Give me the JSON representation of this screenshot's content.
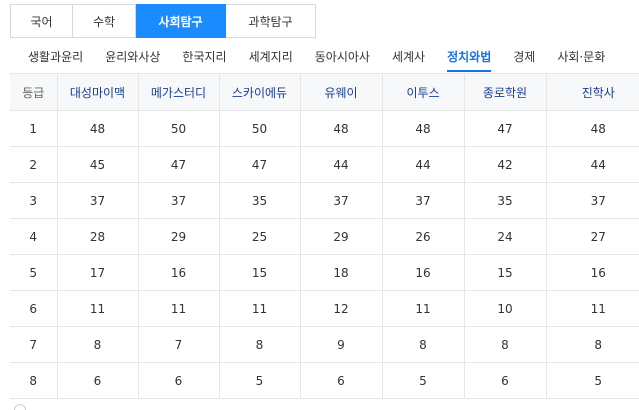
{
  "subject_tabs": [
    "국어",
    "수학",
    "사회탐구",
    "과학탐구"
  ],
  "sub_tabs": [
    "생활과윤리",
    "윤리와사상",
    "한국지리",
    "세계지리",
    "동아시아사",
    "세계사",
    "정치와법",
    "경제",
    "사회·문화"
  ],
  "table": {
    "grade_header": "등급",
    "columns": [
      "대성마이맥",
      "메가스터디",
      "스카이에듀",
      "유웨이",
      "이투스",
      "종로학원",
      "진학사"
    ],
    "rows": [
      {
        "grade": "1",
        "values": [
          "48",
          "50",
          "50",
          "48",
          "48",
          "47",
          "48"
        ]
      },
      {
        "grade": "2",
        "values": [
          "45",
          "47",
          "47",
          "44",
          "44",
          "42",
          "44"
        ]
      },
      {
        "grade": "3",
        "values": [
          "37",
          "37",
          "35",
          "37",
          "37",
          "35",
          "37"
        ]
      },
      {
        "grade": "4",
        "values": [
          "28",
          "29",
          "25",
          "29",
          "26",
          "24",
          "27"
        ]
      },
      {
        "grade": "5",
        "values": [
          "17",
          "16",
          "15",
          "18",
          "16",
          "15",
          "16"
        ]
      },
      {
        "grade": "6",
        "values": [
          "11",
          "11",
          "11",
          "12",
          "11",
          "10",
          "11"
        ]
      },
      {
        "grade": "7",
        "values": [
          "8",
          "7",
          "8",
          "9",
          "8",
          "8",
          "8"
        ]
      },
      {
        "grade": "8",
        "values": [
          "6",
          "6",
          "5",
          "6",
          "5",
          "6",
          "5"
        ]
      }
    ]
  },
  "colors": {
    "accent": "#1a8cff",
    "active_subtab": "#1a73e8",
    "header_text": "#1a3d8f"
  }
}
